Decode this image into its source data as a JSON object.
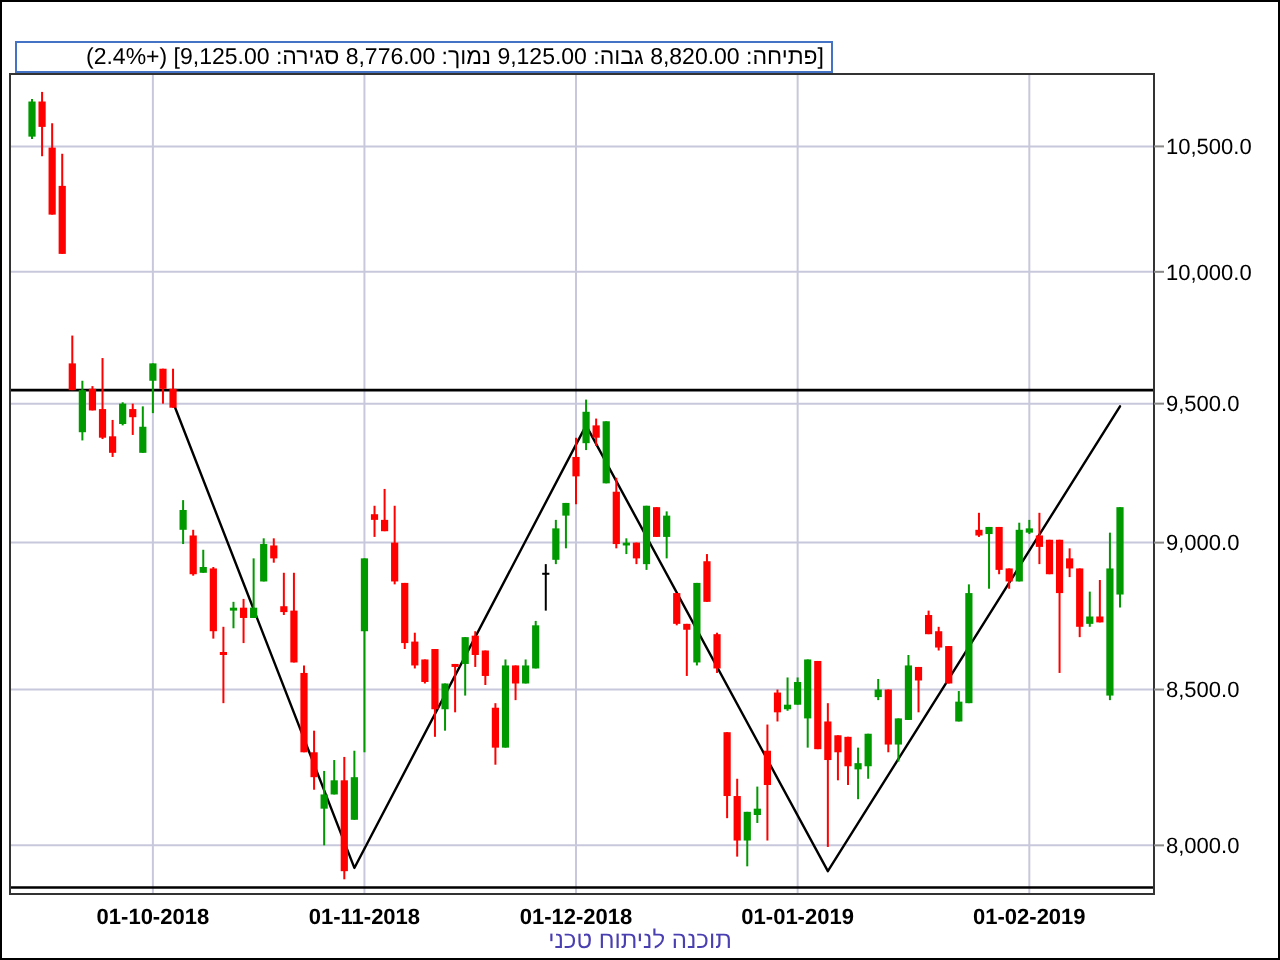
{
  "chart_data": {
    "type": "candlestick",
    "subtitle": "[פתיחה: 8,820.00  גבוה: 9,125.00  נמוך: 8,776.00  סגירה: 9,125.00] (+2.4%)",
    "annotations": [
      "תוכנה לניתוח טכני"
    ],
    "categories": [
      null,
      null,
      null,
      null,
      null,
      null,
      null,
      null,
      null,
      null,
      null,
      null,
      "01-10-2018",
      null,
      null,
      null,
      null,
      null,
      null,
      null,
      null,
      null,
      null,
      null,
      null,
      null,
      null,
      null,
      null,
      null,
      null,
      null,
      null,
      "01-11-2018",
      null,
      null,
      null,
      null,
      null,
      null,
      null,
      null,
      null,
      null,
      null,
      null,
      null,
      null,
      null,
      null,
      null,
      null,
      null,
      null,
      "01-12-2018",
      null,
      null,
      null,
      null,
      null,
      null,
      null,
      null,
      null,
      null,
      null,
      null,
      null,
      null,
      null,
      null,
      null,
      null,
      null,
      null,
      null,
      "01-01-2019",
      null,
      null,
      null,
      null,
      null,
      null,
      null,
      null,
      null,
      null,
      null,
      null,
      null,
      null,
      null,
      null,
      null,
      null,
      null,
      null,
      null,
      null,
      "01-02-2019",
      null,
      null,
      null,
      null,
      null,
      null,
      null,
      null,
      null
    ],
    "ohlc": [
      [
        10540,
        10695,
        10530,
        10685
      ],
      [
        10685,
        10725,
        10460,
        10580
      ],
      [
        10495,
        10595,
        10225,
        10225
      ],
      [
        10340,
        10470,
        10070,
        10070
      ],
      [
        9650,
        9755,
        9550,
        9550
      ],
      [
        9395,
        9585,
        9365,
        9550
      ],
      [
        9555,
        9565,
        9475,
        9475
      ],
      [
        9480,
        9670,
        9370,
        9375
      ],
      [
        9380,
        9440,
        9305,
        9320
      ],
      [
        9425,
        9505,
        9420,
        9500
      ],
      [
        9480,
        9500,
        9385,
        9450
      ],
      [
        9320,
        9490,
        9320,
        9415
      ],
      [
        9585,
        9650,
        9465,
        9650
      ],
      [
        9630,
        9630,
        9500,
        9555
      ],
      [
        9555,
        9630,
        9485,
        9485
      ],
      [
        9045,
        9150,
        8995,
        9115
      ],
      [
        9025,
        9045,
        8885,
        8890
      ],
      [
        8895,
        8975,
        8895,
        8915
      ],
      [
        8910,
        8915,
        8670,
        8695
      ],
      [
        8625,
        8710,
        8455,
        8615
      ],
      [
        8765,
        8795,
        8705,
        8775
      ],
      [
        8775,
        8805,
        8655,
        8740
      ],
      [
        8740,
        8945,
        8740,
        8775
      ],
      [
        8865,
        9015,
        8865,
        8995
      ],
      [
        8990,
        9015,
        8930,
        8945
      ],
      [
        8780,
        8895,
        8750,
        8760
      ],
      [
        8765,
        8895,
        8590,
        8590
      ],
      [
        8555,
        8580,
        8295,
        8295
      ],
      [
        8295,
        8365,
        8175,
        8215
      ],
      [
        8115,
        8235,
        8000,
        8160
      ],
      [
        8160,
        8270,
        8160,
        8205
      ],
      [
        8205,
        8280,
        7895,
        7920
      ],
      [
        8080,
        8300,
        8080,
        8215
      ],
      [
        8695,
        8945,
        8295,
        8945
      ],
      [
        9100,
        9130,
        9020,
        9080
      ],
      [
        9080,
        9190,
        9040,
        9040
      ],
      [
        9000,
        9130,
        8855,
        8865
      ],
      [
        8860,
        8860,
        8635,
        8655
      ],
      [
        8660,
        8690,
        8570,
        8580
      ],
      [
        8600,
        8600,
        8520,
        8525
      ],
      [
        8635,
        8635,
        8345,
        8435
      ],
      [
        8435,
        8520,
        8365,
        8520
      ],
      [
        8585,
        8585,
        8425,
        8575
      ],
      [
        8585,
        8675,
        8480,
        8675
      ],
      [
        8680,
        8695,
        8575,
        8615
      ],
      [
        8630,
        8630,
        8515,
        8545
      ],
      [
        8440,
        8455,
        8255,
        8310
      ],
      [
        8310,
        8600,
        8310,
        8580
      ],
      [
        8580,
        8580,
        8465,
        8520
      ],
      [
        8520,
        8600,
        8520,
        8580
      ],
      [
        8570,
        8730,
        8570,
        8715
      ],
      [
        8895,
        8925,
        8765,
        8895
      ],
      [
        8940,
        9080,
        8925,
        9050
      ],
      [
        9095,
        9140,
        8980,
        9140
      ],
      [
        9305,
        9375,
        9135,
        9235
      ],
      [
        9355,
        9515,
        9330,
        9470
      ],
      [
        9420,
        9445,
        9345,
        9375
      ],
      [
        9210,
        9435,
        9210,
        9435
      ],
      [
        9180,
        9230,
        8980,
        8995
      ],
      [
        8990,
        9015,
        8960,
        9000
      ],
      [
        9000,
        9000,
        8925,
        8945
      ],
      [
        8925,
        9130,
        8905,
        9130
      ],
      [
        9125,
        9125,
        9020,
        9020
      ],
      [
        9020,
        9110,
        8945,
        9095
      ],
      [
        8825,
        8825,
        8715,
        8720
      ],
      [
        8720,
        8720,
        8545,
        8700
      ],
      [
        8590,
        8860,
        8580,
        8860
      ],
      [
        8935,
        8960,
        8795,
        8795
      ],
      [
        8685,
        8690,
        8555,
        8570
      ],
      [
        8360,
        8360,
        8085,
        8155
      ],
      [
        8155,
        8210,
        7965,
        8015
      ],
      [
        8015,
        8105,
        7935,
        8105
      ],
      [
        8095,
        8185,
        8070,
        8115
      ],
      [
        8300,
        8385,
        8015,
        8190
      ],
      [
        8490,
        8500,
        8395,
        8425
      ],
      [
        8435,
        8540,
        8430,
        8450
      ],
      [
        8450,
        8540,
        8450,
        8525
      ],
      [
        8405,
        8600,
        8310,
        8600
      ],
      [
        8595,
        8595,
        8305,
        8305
      ],
      [
        8395,
        8455,
        7995,
        8270
      ],
      [
        8350,
        8350,
        8205,
        8295
      ],
      [
        8345,
        8345,
        8190,
        8250
      ],
      [
        8240,
        8310,
        8145,
        8260
      ],
      [
        8250,
        8355,
        8210,
        8355
      ],
      [
        8475,
        8535,
        8465,
        8500
      ],
      [
        8500,
        8500,
        8295,
        8320
      ],
      [
        8320,
        8405,
        8265,
        8405
      ],
      [
        8400,
        8615,
        8400,
        8580
      ],
      [
        8575,
        8575,
        8425,
        8530
      ],
      [
        8750,
        8765,
        8685,
        8685
      ],
      [
        8695,
        8710,
        8630,
        8640
      ],
      [
        8645,
        8645,
        8520,
        8520
      ],
      [
        8395,
        8495,
        8395,
        8460
      ],
      [
        8455,
        8855,
        8455,
        8825
      ],
      [
        9045,
        9105,
        9020,
        9025
      ],
      [
        9030,
        9055,
        8840,
        9055
      ],
      [
        9055,
        9055,
        8890,
        8905
      ],
      [
        8910,
        8910,
        8840,
        8865
      ],
      [
        8865,
        9070,
        8865,
        9045
      ],
      [
        9035,
        9080,
        9030,
        9050
      ],
      [
        9025,
        9105,
        8925,
        8985
      ],
      [
        9010,
        9010,
        8890,
        8890
      ],
      [
        9010,
        9010,
        8555,
        8825
      ],
      [
        8945,
        8980,
        8880,
        8910
      ],
      [
        8910,
        8910,
        8675,
        8710
      ],
      [
        8720,
        8830,
        8710,
        8745
      ],
      [
        8745,
        8870,
        8725,
        8725
      ],
      [
        8480,
        9035,
        8465,
        8910
      ],
      [
        8820,
        9125,
        8776,
        9125
      ]
    ],
    "colors": [
      "#009900",
      "#ff0000",
      "#ff0000",
      "#ff0000",
      "#ff0000",
      "#009900",
      "#ff0000",
      "#ff0000",
      "#ff0000",
      "#009900",
      "#ff0000",
      "#009900",
      "#009900",
      "#ff0000",
      "#ff0000",
      "#009900",
      "#ff0000",
      "#009900",
      "#ff0000",
      "#ff0000",
      "#009900",
      "#ff0000",
      "#009900",
      "#009900",
      "#ff0000",
      "#ff0000",
      "#ff0000",
      "#ff0000",
      "#ff0000",
      "#009900",
      "#009900",
      "#ff0000",
      "#009900",
      "#009900",
      "#ff0000",
      "#ff0000",
      "#ff0000",
      "#ff0000",
      "#ff0000",
      "#ff0000",
      "#ff0000",
      "#009900",
      "#ff0000",
      "#009900",
      "#ff0000",
      "#ff0000",
      "#ff0000",
      "#009900",
      "#ff0000",
      "#009900",
      "#009900",
      "#000000",
      "#009900",
      "#009900",
      "#ff0000",
      "#009900",
      "#ff0000",
      "#009900",
      "#ff0000",
      "#009900",
      "#ff0000",
      "#009900",
      "#ff0000",
      "#009900",
      "#ff0000",
      "#ff0000",
      "#009900",
      "#ff0000",
      "#ff0000",
      "#ff0000",
      "#ff0000",
      "#009900",
      "#009900",
      "#ff0000",
      "#ff0000",
      "#009900",
      "#009900",
      "#009900",
      "#ff0000",
      "#ff0000",
      "#ff0000",
      "#ff0000",
      "#009900",
      "#009900",
      "#009900",
      "#ff0000",
      "#009900",
      "#009900",
      "#ff0000",
      "#ff0000",
      "#ff0000",
      "#ff0000",
      "#009900",
      "#009900",
      "#ff0000",
      "#009900",
      "#ff0000",
      "#ff0000",
      "#009900",
      "#009900",
      "#ff0000",
      "#ff0000",
      "#ff0000",
      "#ff0000",
      "#ff0000",
      "#009900",
      "#ff0000",
      "#009900",
      "#009900"
    ],
    "series": [
      {
        "type": "line",
        "color": "#000000",
        "values": [
          null,
          null,
          null,
          null,
          null,
          null,
          null,
          null,
          null,
          null,
          null,
          null,
          null,
          null,
          9505,
          null,
          null,
          null,
          null,
          null,
          null,
          null,
          null,
          null,
          null,
          null,
          null,
          null,
          null,
          null,
          null,
          null,
          7930,
          null,
          null,
          null,
          null,
          null,
          null,
          null,
          null,
          null,
          null,
          null,
          null,
          null,
          null,
          null,
          null,
          null,
          null,
          null,
          null,
          null,
          null,
          9420,
          null,
          null,
          null,
          null,
          null,
          null,
          null,
          null,
          null,
          null,
          null,
          null,
          null,
          null,
          null,
          null,
          null,
          null,
          null,
          null,
          null,
          null,
          null,
          7920,
          null,
          null,
          null,
          null,
          null,
          null,
          null,
          null,
          null,
          null,
          null,
          null,
          null,
          null,
          null,
          null,
          null,
          null,
          null,
          null,
          null,
          null,
          null,
          null,
          null,
          null,
          null,
          null,
          9490
        ]
      }
    ],
    "ref_lines": [
      {
        "axis": "y",
        "value": 9550,
        "color": "#000000"
      },
      {
        "axis": "y",
        "value": 7870,
        "color": "#000000"
      }
    ],
    "log": true,
    "ylim": [
      7850,
      10800
    ],
    "yticks": [
      {
        "value": 8000,
        "label": "8,000.0"
      },
      {
        "value": 8500,
        "label": "8,500.0"
      },
      {
        "value": 9000,
        "label": "9,000.0"
      },
      {
        "value": 9500,
        "label": "9,500.0"
      },
      {
        "value": 10000,
        "label": "10,000.0"
      },
      {
        "value": 10500,
        "label": "10,500.0"
      }
    ],
    "grid": true,
    "line_style": "solid"
  }
}
